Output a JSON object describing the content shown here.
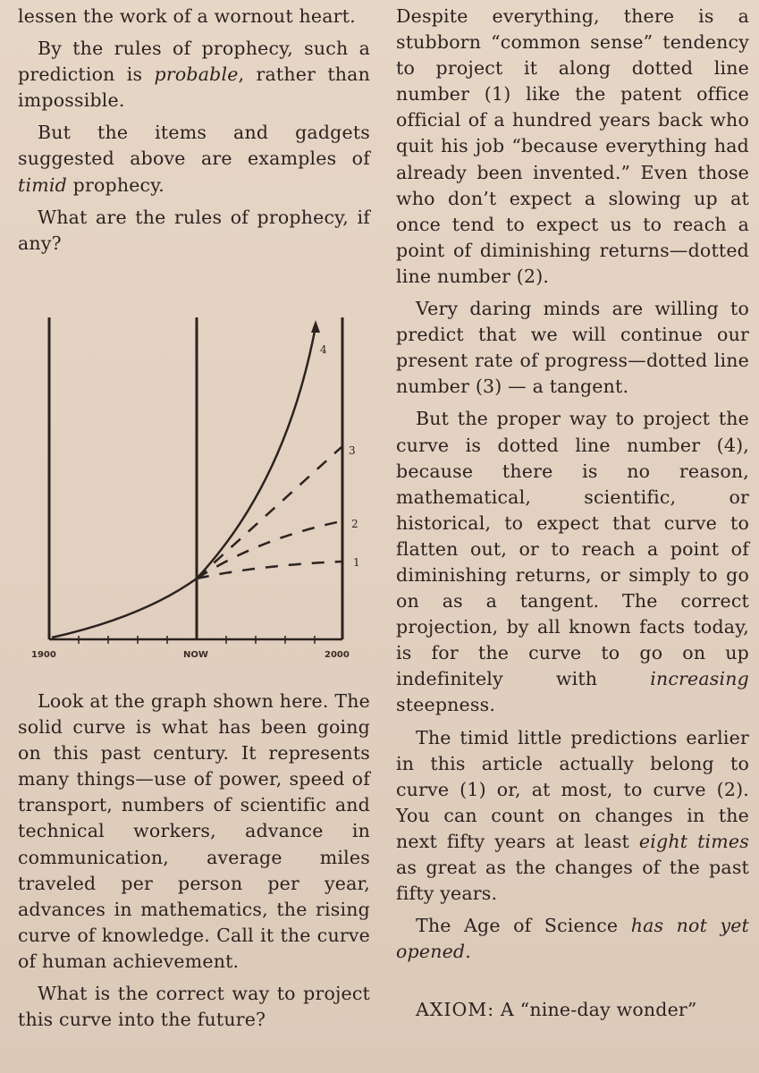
{
  "left_column": {
    "p1": "lessen the work of a wornout heart.",
    "p2_pre": "By the rules of prophecy, such a prediction is ",
    "p2_em": "probable",
    "p2_post": ", rather than impossible.",
    "p3_pre": "But the items and gadgets suggested above are examples of ",
    "p3_em": "timid",
    "p3_post": " prophecy.",
    "p4": "What are the rules of prophecy, if any?",
    "p5": "Look at the graph shown here. The solid curve is what has been going on this past century. It represents many things—use of power, speed of transport, numbers of scientific and technical workers, advance in communication, average miles traveled per person per year, advances in mathematics, the rising curve of knowledge. Call it the curve of human achievement.",
    "p6": "What is the correct way to project this curve into the future?"
  },
  "right_column": {
    "p1": "Despite everything, there is a stubborn “common sense” tendency to project it along dotted line number (1) like the patent office official of a hundred years back who quit his job “because everything had already been invented.” Even those who don’t expect a slowing up at once tend to expect us to reach a point of diminishing returns—dotted line number (2).",
    "p2": "Very daring minds are willing to predict that we will continue our present rate of progress—dotted line number (3) — a tangent.",
    "p3": "But the proper way to project the curve is dotted line number (4), because there is no reason, mathematical, scientific, or historical, to expect that curve to flatten out, or to reach a point of diminishing returns, or simply to go on as a tangent. The correct projection, by all known facts today, is for the curve to go on up indefinitely with ",
    "p3_em": "increasing",
    "p3_post": " steepness.",
    "p4_pre": "The timid little predictions earlier in this article actually belong to curve (1) or, at most, to curve (2). You can count on changes in the next fifty years at least ",
    "p4_em": "eight times",
    "p4_post": " as great as the changes of the past fifty years.",
    "p5_pre": "The Age of Science ",
    "p5_em": "has not yet opened",
    "p5_post": ".",
    "axiom_label": "AXIOM:",
    "axiom_text": " A “nine-day wonder”"
  },
  "figure": {
    "x_labels": [
      "1900",
      "NOW",
      "2000"
    ],
    "line_labels": [
      "1",
      "2",
      "3",
      "4"
    ]
  }
}
